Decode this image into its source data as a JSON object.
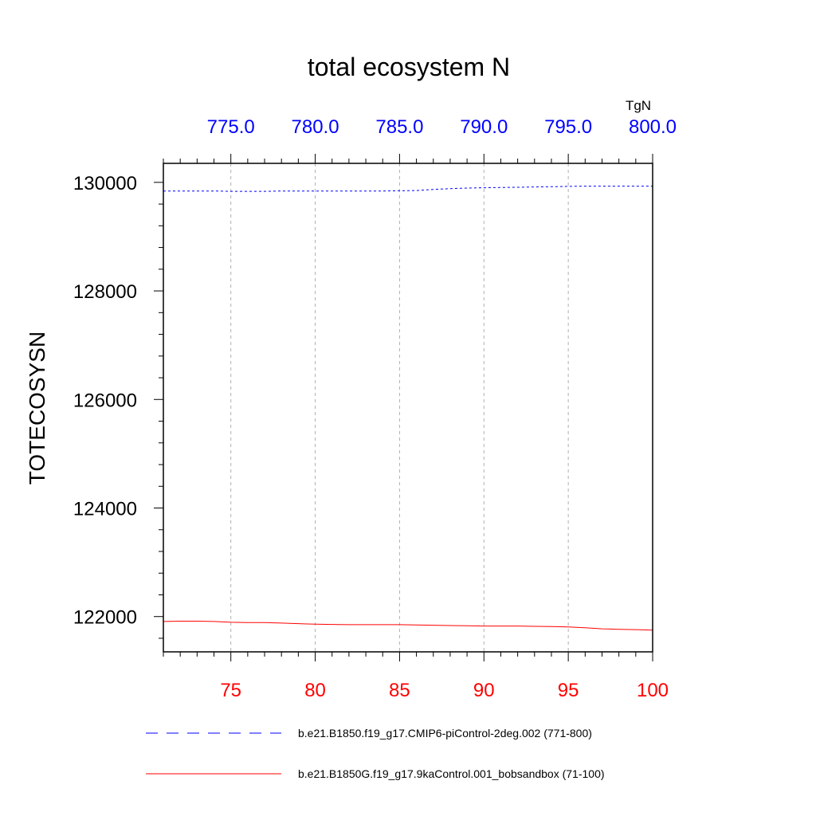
{
  "chart_data": {
    "type": "line",
    "title": "total ecosystem N",
    "ylabel": "TOTECOSYSN",
    "units": "TgN",
    "ylim": [
      121350,
      130350
    ],
    "yticks": [
      122000,
      124000,
      126000,
      128000,
      130000
    ],
    "yticks_minor_step": 400,
    "grid": "vertical-dashed",
    "x_bottom": {
      "range": [
        71,
        100
      ],
      "ticks": [
        75,
        80,
        85,
        90,
        95,
        100
      ],
      "tick_labels": [
        "75",
        "80",
        "85",
        "90",
        "95",
        "100"
      ],
      "color": "#ff0000"
    },
    "x_top": {
      "range": [
        771.0,
        800.0
      ],
      "ticks": [
        775.0,
        780.0,
        785.0,
        790.0,
        795.0,
        800.0
      ],
      "tick_labels": [
        "775.0",
        "780.0",
        "785.0",
        "790.0",
        "795.0",
        "800.0"
      ],
      "color": "#0000ff"
    },
    "series": [
      {
        "name": "b.e21.B1850.f19_g17.CMIP6-piControl-2deg.002 (771-800)",
        "axis": "top",
        "color": "#0000ff",
        "style": "dashed",
        "x": [
          771,
          772,
          773,
          774,
          775,
          776,
          777,
          778,
          779,
          780,
          781,
          782,
          783,
          784,
          785,
          786,
          787,
          788,
          789,
          790,
          791,
          792,
          793,
          794,
          795,
          796,
          797,
          798,
          799,
          800
        ],
        "values": [
          129840,
          129840,
          129840,
          129840,
          129835,
          129835,
          129835,
          129840,
          129840,
          129840,
          129840,
          129840,
          129840,
          129840,
          129845,
          129850,
          129870,
          129885,
          129895,
          129900,
          129905,
          129910,
          129915,
          129920,
          129925,
          129930,
          129930,
          129930,
          129930,
          129930
        ]
      },
      {
        "name": "b.e21.B1850G.f19_g17.9kaControl.001_bobsandbox (71-100)",
        "axis": "bottom",
        "color": "#ff0000",
        "style": "solid",
        "x": [
          71,
          72,
          73,
          74,
          75,
          76,
          77,
          78,
          79,
          80,
          81,
          82,
          83,
          84,
          85,
          86,
          87,
          88,
          89,
          90,
          91,
          92,
          93,
          94,
          95,
          96,
          97,
          98,
          99,
          100
        ],
        "values": [
          121910,
          121915,
          121915,
          121910,
          121895,
          121890,
          121890,
          121880,
          121870,
          121860,
          121855,
          121850,
          121850,
          121850,
          121850,
          121845,
          121840,
          121835,
          121830,
          121825,
          121825,
          121825,
          121820,
          121815,
          121810,
          121795,
          121775,
          121765,
          121760,
          121750
        ]
      }
    ]
  }
}
